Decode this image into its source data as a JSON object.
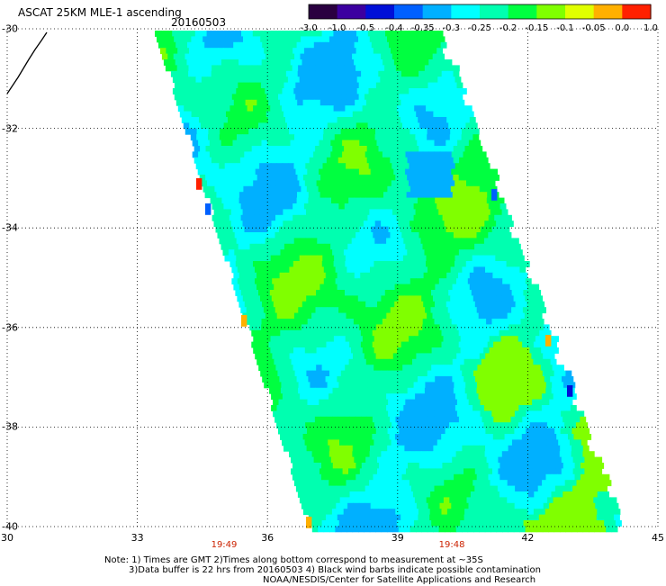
{
  "header": {
    "title": "ASCAT 25KM MLE-1 ascending",
    "date": "20160503"
  },
  "colorbar": {
    "tick_labels": [
      "-3.0",
      "-1.0",
      "-0.5",
      "-0.4",
      "-0.35",
      "-0.3",
      "-0.25",
      "-0.2",
      "-0.15",
      "-0.1",
      "-0.05",
      "0.0",
      "1.0"
    ],
    "colors": [
      "#2a0040",
      "#3c00a0",
      "#0010d8",
      "#0060ff",
      "#00b0ff",
      "#00ffff",
      "#00ffb0",
      "#00ff40",
      "#80ff00",
      "#e0ff00",
      "#ffb000",
      "#ff2000"
    ]
  },
  "map": {
    "lat_labels": [
      "-30",
      "-32",
      "-34",
      "-36",
      "-38",
      "-40"
    ],
    "lon_labels": [
      "30",
      "33",
      "36",
      "39",
      "42",
      "45"
    ],
    "lat_range": [
      -40,
      -30
    ],
    "lon_range": [
      30,
      45
    ],
    "gridlines": true,
    "pass_times": [
      {
        "lon": 35.0,
        "label": "19:49"
      },
      {
        "lon": 40.25,
        "label": "19:48"
      }
    ]
  },
  "notes": {
    "line1": "Note: 1) Times are GMT 2)Times along bottom correspond to measurement at ~35S",
    "line2": "3)Data buffer is 22 hrs from 20160503 4) Black wind barbs indicate possible contamination",
    "line3": "NOAA/NESDIS/Center for Satellite Applications and Research"
  }
}
